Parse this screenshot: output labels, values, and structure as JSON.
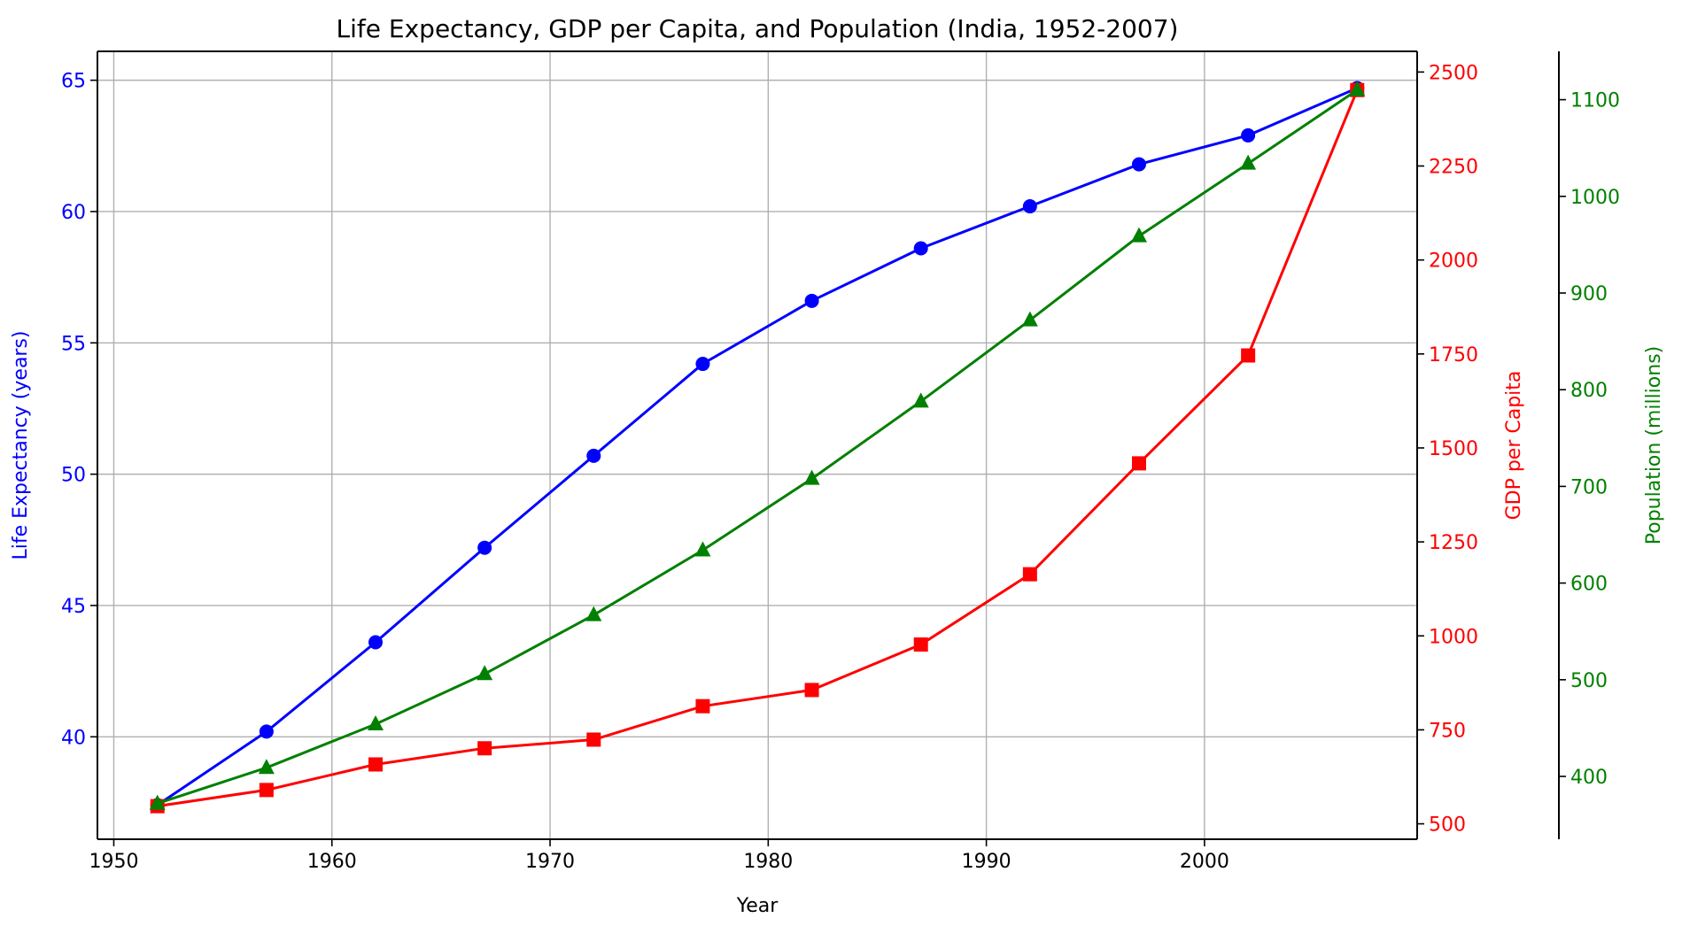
{
  "chart_data": {
    "type": "line",
    "title": "Life Expectancy, GDP per Capita, and Population (India, 1952-2007)",
    "xlabel": "Year",
    "x": [
      1952,
      1957,
      1962,
      1967,
      1972,
      1977,
      1982,
      1987,
      1992,
      1997,
      2002,
      2007
    ],
    "xlim": [
      1949.25,
      2009.75
    ],
    "xticks": [
      1950,
      1960,
      1970,
      1980,
      1990,
      2000
    ],
    "grid": true,
    "axes": [
      {
        "id": "life",
        "side": "left",
        "label": "Life Expectancy (years)",
        "color": "#0000ff",
        "ylim": [
          36.1,
          66.1
        ],
        "ticks": [
          40,
          45,
          50,
          55,
          60,
          65
        ],
        "marker": "circle"
      },
      {
        "id": "gdp",
        "side": "right",
        "label": "GDP per Capita",
        "color": "#ff0000",
        "ylim": [
          459,
          2555
        ],
        "ticks": [
          500,
          750,
          1000,
          1250,
          1500,
          1750,
          2000,
          2250,
          2500
        ],
        "marker": "square"
      },
      {
        "id": "pop",
        "side": "right-offset",
        "label": "Population (millions)",
        "color": "#008000",
        "ylim": [
          335,
          1150
        ],
        "ticks": [
          400,
          500,
          600,
          700,
          800,
          900,
          1000,
          1100
        ],
        "marker": "triangle"
      }
    ],
    "series": [
      {
        "axis": "life",
        "values": [
          37.4,
          40.2,
          43.6,
          47.2,
          50.7,
          54.2,
          56.6,
          58.6,
          60.2,
          61.8,
          62.9,
          64.7
        ]
      },
      {
        "axis": "gdp",
        "values": [
          547,
          590,
          658,
          701,
          724,
          813,
          856,
          977,
          1164,
          1459,
          1746,
          2452
        ]
      },
      {
        "axis": "pop",
        "values": [
          372,
          409,
          454,
          506,
          567,
          634,
          708,
          788,
          872,
          959,
          1034,
          1110
        ]
      }
    ]
  }
}
